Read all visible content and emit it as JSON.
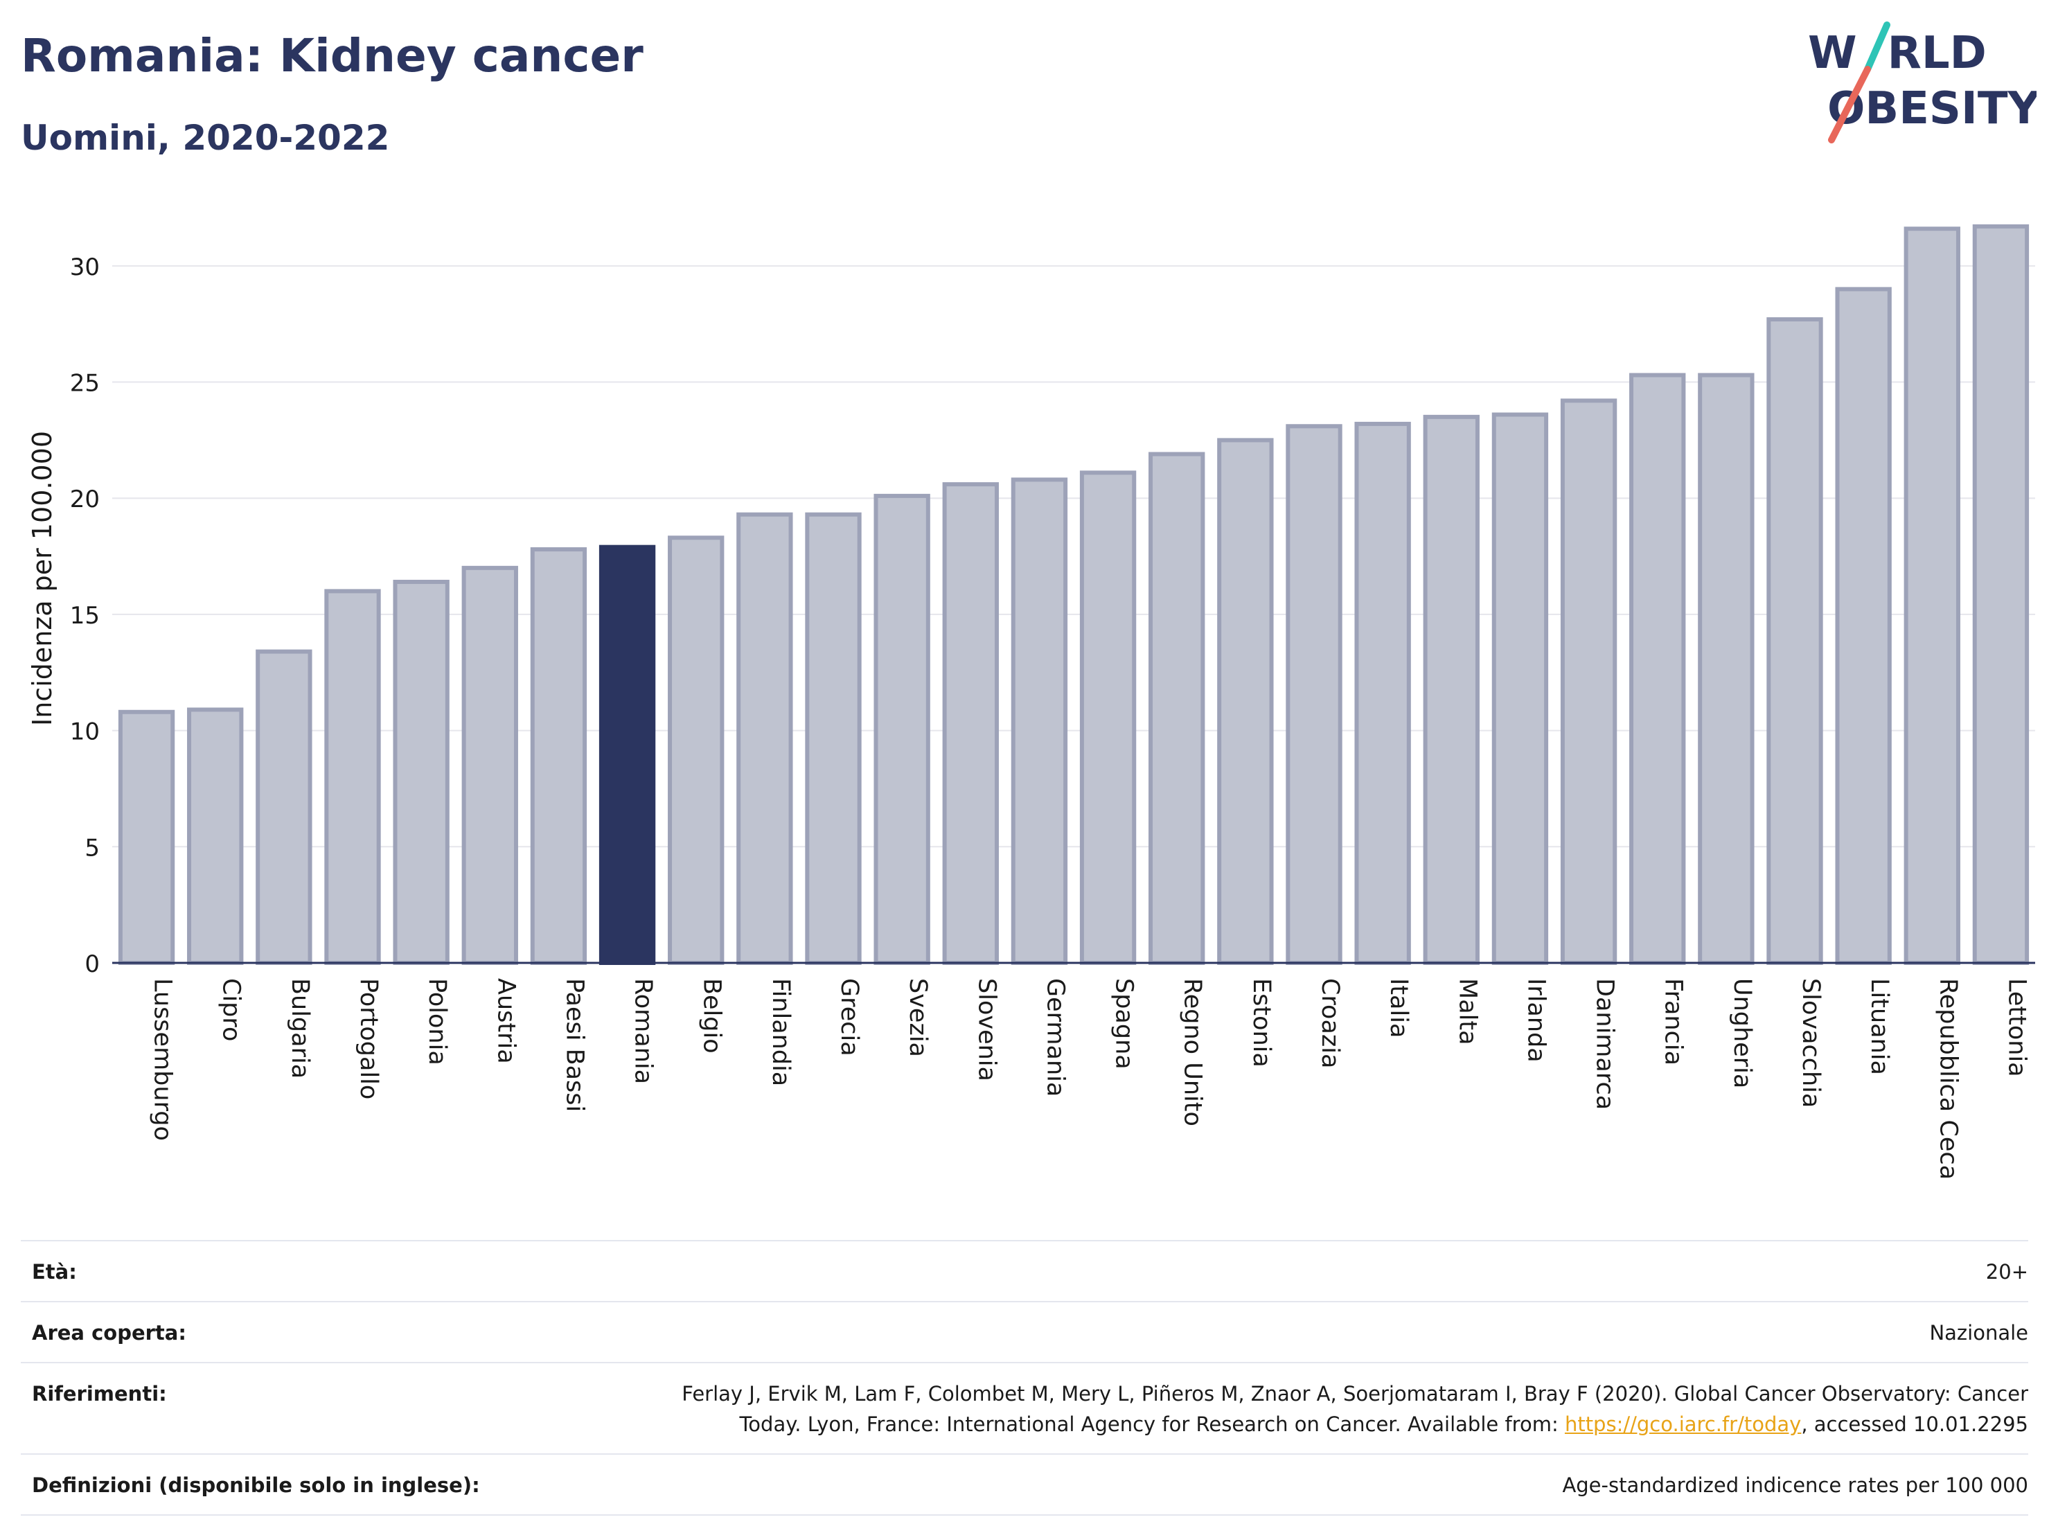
{
  "header": {
    "title": "Romania: Kidney cancer",
    "subtitle": "Uomini, 2020-2022"
  },
  "logo": {
    "line1_a": "W",
    "line1_b": "RLD",
    "line2_a": "O",
    "line2_b": "BESITY",
    "color_text": "#2b3560",
    "color_slash_top": "#2ec4b6",
    "color_slash_bottom": "#e8675a"
  },
  "colors": {
    "bar": "#bfc3d0",
    "bar_border": "#9da2b8",
    "highlight": "#2b3560",
    "grid": "#e6e6ec",
    "axis": "#2b3560"
  },
  "chart_data": {
    "type": "bar",
    "title": "Romania: Kidney cancer",
    "subtitle": "Uomini, 2020-2022",
    "ylabel": "Incidenza per 100.000",
    "xlabel": "",
    "ylim": [
      0,
      32.5
    ],
    "yticks": [
      0,
      5,
      10,
      15,
      20,
      25,
      30
    ],
    "grid": true,
    "highlight": "Romania",
    "categories": [
      "Lussemburgo",
      "Cipro",
      "Bulgaria",
      "Portogallo",
      "Polonia",
      "Austria",
      "Paesi Bassi",
      "Romania",
      "Belgio",
      "Finlandia",
      "Grecia",
      "Svezia",
      "Slovenia",
      "Germania",
      "Spagna",
      "Regno Unito",
      "Estonia",
      "Croazia",
      "Italia",
      "Malta",
      "Irlanda",
      "Danimarca",
      "Francia",
      "Ungheria",
      "Slovacchia",
      "Lituania",
      "Repubblica Ceca",
      "Lettonia"
    ],
    "values": [
      10.8,
      10.9,
      13.4,
      16.0,
      16.4,
      17.0,
      17.8,
      17.9,
      18.3,
      19.3,
      19.3,
      20.1,
      20.6,
      20.8,
      21.1,
      21.9,
      22.5,
      23.1,
      23.2,
      23.5,
      23.6,
      24.2,
      25.3,
      25.3,
      27.7,
      29.0,
      31.6,
      31.7
    ]
  },
  "footer": {
    "age_label": "Età:",
    "age_value": "20+",
    "area_label": "Area coperta:",
    "area_value": "Nazionale",
    "refs_label": "Riferimenti:",
    "refs_text_1": "Ferlay J, Ervik M, Lam F, Colombet M, Mery L, Piñeros M, Znaor A, Soerjomataram I, Bray F (2020). Global Cancer Observatory: Cancer",
    "refs_text_2": "Today. Lyon, France: International Agency for Research on Cancer. Available from: ",
    "refs_link": "https://gco.iarc.fr/today",
    "refs_text_3": ", accessed 10.01.2295",
    "defs_label": "Definizioni (disponibile solo in inglese):",
    "defs_value": "Age-standardized indicence rates per 100 000"
  }
}
